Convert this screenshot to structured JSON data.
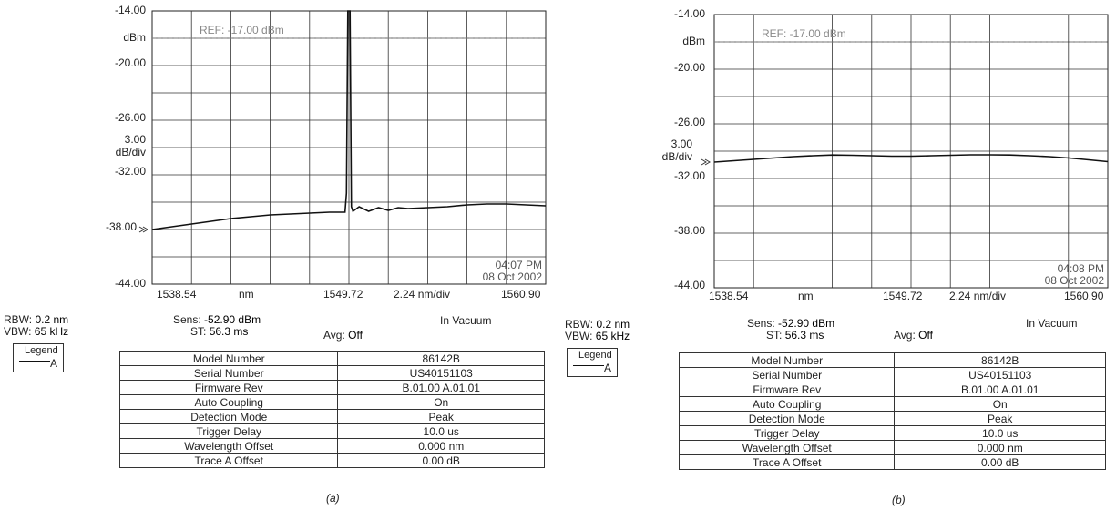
{
  "panels": [
    {
      "caption": "(a)",
      "y_ticks": [
        "-14.00",
        "dBm",
        "-20.00",
        "-26.00",
        "3.00",
        "dB/div",
        "-32.00",
        "-38.00",
        "-44.00"
      ],
      "ref_label": "REF: -17.00 dBm",
      "timestamp": [
        "04:07 PM",
        "08 Oct 2002"
      ],
      "x_start": "1538.54",
      "x_unit": "nm",
      "x_center": "1549.72",
      "x_span": "2.24 nm/div",
      "x_end": "1560.90",
      "rbw_label": "RBW:",
      "rbw_value": "0.2 nm",
      "vbw_label": "VBW:",
      "vbw_value": "65 kHz",
      "sens_label": "Sens:",
      "sens_value": "-52.90 dBm",
      "st_label": "ST:",
      "st_value": "56.3 ms",
      "avg_label": "Avg:",
      "avg_value": "Off",
      "medium": "In Vacuum",
      "legend_title": "Legend",
      "legend_trace": "A",
      "table": [
        [
          "Model Number",
          "86142B"
        ],
        [
          "Serial Number",
          "US40151103"
        ],
        [
          "Firmware Rev",
          "B.01.00 A.01.01"
        ],
        [
          "Auto Coupling",
          "On"
        ],
        [
          "Detection Mode",
          "Peak"
        ],
        [
          "Trigger Delay",
          "10.0 us"
        ],
        [
          "Wavelength Offset",
          "0.000 nm"
        ],
        [
          "Trace A Offset",
          "0.00 dB"
        ]
      ]
    },
    {
      "caption": "(b)",
      "y_ticks": [
        "-14.00",
        "dBm",
        "-20.00",
        "-26.00",
        "3.00",
        "dB/div",
        "-32.00",
        "-38.00",
        "-44.00"
      ],
      "ref_label": "REF: -17.00 dBm",
      "timestamp": [
        "04:08 PM",
        "08 Oct 2002"
      ],
      "x_start": "1538.54",
      "x_unit": "nm",
      "x_center": "1549.72",
      "x_span": "2.24 nm/div",
      "x_end": "1560.90",
      "rbw_label": "RBW:",
      "rbw_value": "0.2 nm",
      "vbw_label": "VBW:",
      "vbw_value": "65 kHz",
      "sens_label": "Sens:",
      "sens_value": "-52.90 dBm",
      "st_label": "ST:",
      "st_value": "56.3 ms",
      "avg_label": "Avg:",
      "avg_value": "Off",
      "medium": "In Vacuum",
      "legend_title": "Legend",
      "legend_trace": "A",
      "table": [
        [
          "Model Number",
          "86142B"
        ],
        [
          "Serial Number",
          "US40151103"
        ],
        [
          "Firmware Rev",
          "B.01.00 A.01.01"
        ],
        [
          "Auto Coupling",
          "On"
        ],
        [
          "Detection Mode",
          "Peak"
        ],
        [
          "Trigger Delay",
          "10.0 us"
        ],
        [
          "Wavelength Offset",
          "0.000 nm"
        ],
        [
          "Trace A Offset",
          "0.00 dB"
        ]
      ]
    }
  ],
  "chart_data": [
    {
      "type": "line",
      "x_unit": "nm",
      "y_unit": "dBm",
      "xlim": [
        1538.54,
        1560.9
      ],
      "ylim": [
        -44.0,
        -14.0
      ],
      "ref_level": -17.0,
      "grid": true,
      "series": [
        {
          "name": "A",
          "x": [
            1538.54,
            1539.66,
            1540.78,
            1541.9,
            1543.02,
            1544.14,
            1545.26,
            1546.38,
            1547.5,
            1548.62,
            1549.5,
            1549.58,
            1549.66,
            1549.72,
            1549.78,
            1549.86,
            1549.95,
            1550.3,
            1550.84,
            1551.4,
            1551.96,
            1552.52,
            1553.08,
            1554.2,
            1555.32,
            1556.44,
            1557.56,
            1558.68,
            1559.8,
            1560.9
          ],
          "y": [
            -38.0,
            -37.7,
            -37.4,
            -37.1,
            -36.8,
            -36.6,
            -36.4,
            -36.3,
            -36.2,
            -36.1,
            -36.1,
            -34.0,
            -14.0,
            -14.0,
            -14.0,
            -35.5,
            -36.0,
            -35.5,
            -36.0,
            -35.6,
            -35.9,
            -35.6,
            -35.7,
            -35.6,
            -35.5,
            -35.3,
            -35.2,
            -35.2,
            -35.3,
            -35.4
          ]
        }
      ]
    },
    {
      "type": "line",
      "x_unit": "nm",
      "y_unit": "dBm",
      "xlim": [
        1538.54,
        1560.9
      ],
      "ylim": [
        -44.0,
        -14.0
      ],
      "ref_level": -17.0,
      "grid": true,
      "series": [
        {
          "name": "A",
          "x": [
            1538.54,
            1539.66,
            1540.78,
            1541.9,
            1543.02,
            1544.14,
            1545.26,
            1546.38,
            1547.5,
            1548.62,
            1549.74,
            1550.86,
            1551.98,
            1553.1,
            1554.22,
            1555.34,
            1556.46,
            1557.58,
            1558.7,
            1559.82,
            1560.9
          ],
          "y": [
            -30.2,
            -30.05,
            -29.9,
            -29.75,
            -29.6,
            -29.5,
            -29.42,
            -29.45,
            -29.5,
            -29.55,
            -29.55,
            -29.5,
            -29.45,
            -29.4,
            -29.4,
            -29.42,
            -29.5,
            -29.6,
            -29.75,
            -29.95,
            -30.15
          ]
        }
      ]
    }
  ]
}
